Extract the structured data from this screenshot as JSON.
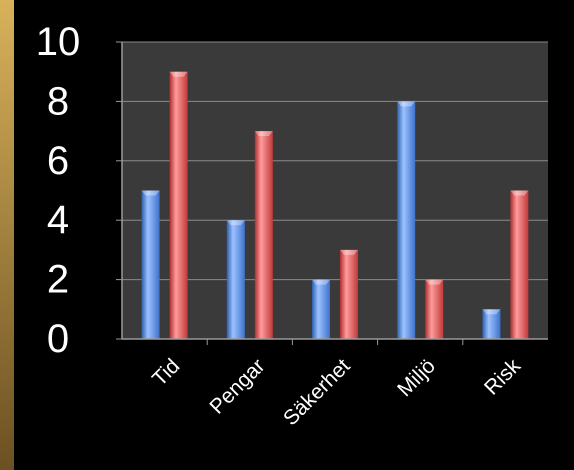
{
  "chart_data": {
    "type": "bar",
    "categories": [
      "Tid",
      "Pengar",
      "Säkerhet",
      "Miljö",
      "Risk"
    ],
    "series": [
      {
        "values": [
          5,
          4,
          2,
          8,
          1
        ],
        "color": "#4f86d9"
      },
      {
        "values": [
          9,
          7,
          3,
          2,
          5
        ],
        "color": "#d94545"
      }
    ],
    "ylim": [
      0,
      10
    ],
    "yticks": [
      "0",
      "2",
      "4",
      "6",
      "8",
      "10"
    ],
    "grid": true,
    "legend": "none",
    "colors": {
      "background": "#000000",
      "plot_area": "#3a3a3a",
      "gridline": "#8a8a8a",
      "tick_text": "#ffffff",
      "left_strip": "#c9a24a"
    }
  }
}
